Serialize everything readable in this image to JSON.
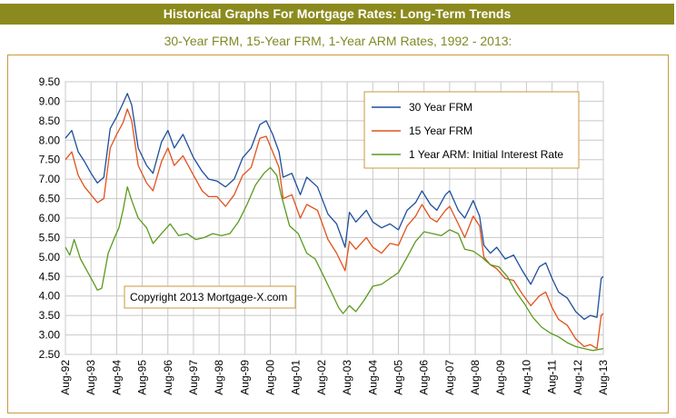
{
  "header": {
    "banner_title": "Historical Graphs For Mortgage Rates: Long-Term Trends",
    "subtitle": "30-Year FRM, 15-Year FRM, 1-Year ARM Rates, 1992 - 2013:"
  },
  "copyright": "Copyright 2013 Mortgage-X.com",
  "colors": {
    "banner_bg": "#8b8a1e",
    "subtitle": "#808a25",
    "frame_border": "#c89a3c",
    "series_30": "#1f4e9c",
    "series_15": "#e0521b",
    "series_arm": "#5a9a1e"
  },
  "chart_data": {
    "type": "line",
    "title": "30-Year FRM, 15-Year FRM, 1-Year ARM Rates, 1992 - 2013:",
    "xlabel": "",
    "ylabel": "",
    "ylim": [
      2.5,
      9.5
    ],
    "yticks": [
      "9.50",
      "9.00",
      "8.50",
      "8.00",
      "7.50",
      "7.00",
      "6.50",
      "6.00",
      "5.50",
      "5.00",
      "4.50",
      "4.00",
      "3.50",
      "3.00",
      "2.50"
    ],
    "xticks": [
      "Aug-92",
      "Aug-93",
      "Aug-94",
      "Aug-95",
      "Aug-96",
      "Aug-97",
      "Aug-98",
      "Aug-99",
      "Aug-00",
      "Aug-01",
      "Aug-02",
      "Aug-03",
      "Aug-04",
      "Aug-05",
      "Aug-06",
      "Aug-07",
      "Aug-08",
      "Aug-09",
      "Aug-10",
      "Aug-11",
      "Aug-12",
      "Aug-13"
    ],
    "grid": true,
    "legend_position": "top-right",
    "series": [
      {
        "name": "30 Year FRM",
        "x": [
          1992.58,
          1992.83,
          1993.08,
          1993.33,
          1993.58,
          1993.83,
          1994.08,
          1994.33,
          1994.58,
          1994.83,
          1995.0,
          1995.17,
          1995.42,
          1995.75,
          1996.0,
          1996.33,
          1996.58,
          1996.83,
          1997.17,
          1997.58,
          1997.92,
          1998.17,
          1998.5,
          1998.83,
          1999.17,
          1999.5,
          1999.83,
          2000.17,
          2000.42,
          2000.67,
          2000.92,
          2001.08,
          2001.42,
          2001.75,
          2002.0,
          2002.42,
          2002.83,
          2003.17,
          2003.5,
          2003.67,
          2003.92,
          2004.33,
          2004.58,
          2004.92,
          2005.25,
          2005.58,
          2005.92,
          2006.25,
          2006.5,
          2006.83,
          2007.08,
          2007.42,
          2007.58,
          2007.92,
          2008.17,
          2008.5,
          2008.75,
          2008.92,
          2009.17,
          2009.42,
          2009.75,
          2010.08,
          2010.42,
          2010.75,
          2011.08,
          2011.33,
          2011.58,
          2011.83,
          2012.17,
          2012.5,
          2012.83,
          2013.08,
          2013.33,
          2013.5,
          2013.58
        ],
        "y": [
          8.05,
          8.25,
          7.7,
          7.45,
          7.15,
          6.9,
          7.05,
          8.3,
          8.6,
          8.95,
          9.2,
          8.9,
          7.8,
          7.35,
          7.15,
          7.95,
          8.25,
          7.8,
          8.15,
          7.55,
          7.2,
          7.0,
          6.95,
          6.8,
          7.0,
          7.55,
          7.8,
          8.4,
          8.5,
          8.15,
          7.7,
          7.05,
          7.15,
          6.6,
          7.05,
          6.8,
          6.1,
          5.85,
          5.25,
          6.15,
          5.9,
          6.2,
          5.9,
          5.75,
          5.85,
          5.7,
          6.2,
          6.4,
          6.7,
          6.35,
          6.2,
          6.6,
          6.7,
          6.2,
          6.0,
          6.45,
          6.05,
          5.3,
          5.1,
          5.25,
          4.95,
          5.05,
          4.65,
          4.3,
          4.75,
          4.85,
          4.45,
          4.1,
          3.95,
          3.6,
          3.4,
          3.5,
          3.45,
          4.45,
          4.5
        ]
      },
      {
        "name": "15 Year FRM",
        "x": [
          1992.58,
          1992.83,
          1993.08,
          1993.33,
          1993.58,
          1993.83,
          1994.08,
          1994.33,
          1994.58,
          1994.83,
          1995.0,
          1995.17,
          1995.42,
          1995.75,
          1996.0,
          1996.33,
          1996.58,
          1996.83,
          1997.17,
          1997.58,
          1997.92,
          1998.17,
          1998.5,
          1998.83,
          1999.17,
          1999.5,
          1999.83,
          2000.17,
          2000.42,
          2000.67,
          2000.92,
          2001.08,
          2001.42,
          2001.75,
          2002.0,
          2002.42,
          2002.83,
          2003.17,
          2003.5,
          2003.67,
          2003.92,
          2004.33,
          2004.58,
          2004.92,
          2005.25,
          2005.58,
          2005.92,
          2006.25,
          2006.5,
          2006.83,
          2007.08,
          2007.42,
          2007.58,
          2007.92,
          2008.17,
          2008.5,
          2008.75,
          2008.92,
          2009.17,
          2009.42,
          2009.75,
          2010.08,
          2010.42,
          2010.75,
          2011.08,
          2011.33,
          2011.58,
          2011.83,
          2012.17,
          2012.5,
          2012.83,
          2013.08,
          2013.33,
          2013.5,
          2013.58
        ],
        "y": [
          7.5,
          7.7,
          7.1,
          6.8,
          6.6,
          6.4,
          6.5,
          7.8,
          8.15,
          8.45,
          8.8,
          8.5,
          7.35,
          6.9,
          6.7,
          7.45,
          7.8,
          7.35,
          7.6,
          7.1,
          6.7,
          6.55,
          6.55,
          6.3,
          6.6,
          7.1,
          7.3,
          8.05,
          8.1,
          7.7,
          7.3,
          6.5,
          6.6,
          6.0,
          6.35,
          6.2,
          5.45,
          5.1,
          4.65,
          5.4,
          5.2,
          5.5,
          5.25,
          5.1,
          5.35,
          5.3,
          5.8,
          6.05,
          6.35,
          6.0,
          5.9,
          6.2,
          6.3,
          5.85,
          5.5,
          6.05,
          5.8,
          5.0,
          4.8,
          4.7,
          4.45,
          4.4,
          4.05,
          3.75,
          4.0,
          4.1,
          3.7,
          3.4,
          3.25,
          2.9,
          2.7,
          2.75,
          2.65,
          3.5,
          3.55
        ]
      },
      {
        "name": "1 Year ARM: Initial Interest Rate",
        "x": [
          1992.58,
          1992.75,
          1992.92,
          1993.17,
          1993.42,
          1993.67,
          1993.83,
          1994.0,
          1994.25,
          1994.5,
          1994.67,
          1994.83,
          1995.0,
          1995.17,
          1995.42,
          1995.75,
          1996.0,
          1996.33,
          1996.67,
          1997.0,
          1997.33,
          1997.67,
          1998.0,
          1998.33,
          1998.67,
          1999.0,
          1999.33,
          1999.67,
          2000.0,
          2000.33,
          2000.58,
          2000.83,
          2001.0,
          2001.33,
          2001.67,
          2002.0,
          2002.33,
          2002.67,
          2003.0,
          2003.25,
          2003.42,
          2003.67,
          2003.92,
          2004.25,
          2004.58,
          2004.92,
          2005.25,
          2005.58,
          2005.92,
          2006.25,
          2006.58,
          2006.92,
          2007.25,
          2007.58,
          2007.92,
          2008.17,
          2008.5,
          2008.83,
          2009.17,
          2009.5,
          2009.83,
          2010.17,
          2010.5,
          2010.83,
          2011.17,
          2011.5,
          2011.83,
          2012.17,
          2012.5,
          2012.83,
          2013.17,
          2013.58
        ],
        "y": [
          5.25,
          5.05,
          5.45,
          4.95,
          4.65,
          4.35,
          4.15,
          4.2,
          5.1,
          5.5,
          5.75,
          6.2,
          6.8,
          6.45,
          6.0,
          5.75,
          5.35,
          5.6,
          5.85,
          5.55,
          5.6,
          5.45,
          5.5,
          5.6,
          5.55,
          5.6,
          5.9,
          6.35,
          6.85,
          7.15,
          7.3,
          7.1,
          6.6,
          5.8,
          5.6,
          5.1,
          4.95,
          4.5,
          4.05,
          3.7,
          3.55,
          3.75,
          3.6,
          3.9,
          4.25,
          4.3,
          4.45,
          4.6,
          5.0,
          5.4,
          5.65,
          5.6,
          5.55,
          5.7,
          5.6,
          5.2,
          5.15,
          5.0,
          4.8,
          4.75,
          4.5,
          4.1,
          3.8,
          3.45,
          3.2,
          3.05,
          2.95,
          2.8,
          2.7,
          2.65,
          2.6,
          2.65
        ]
      }
    ]
  }
}
